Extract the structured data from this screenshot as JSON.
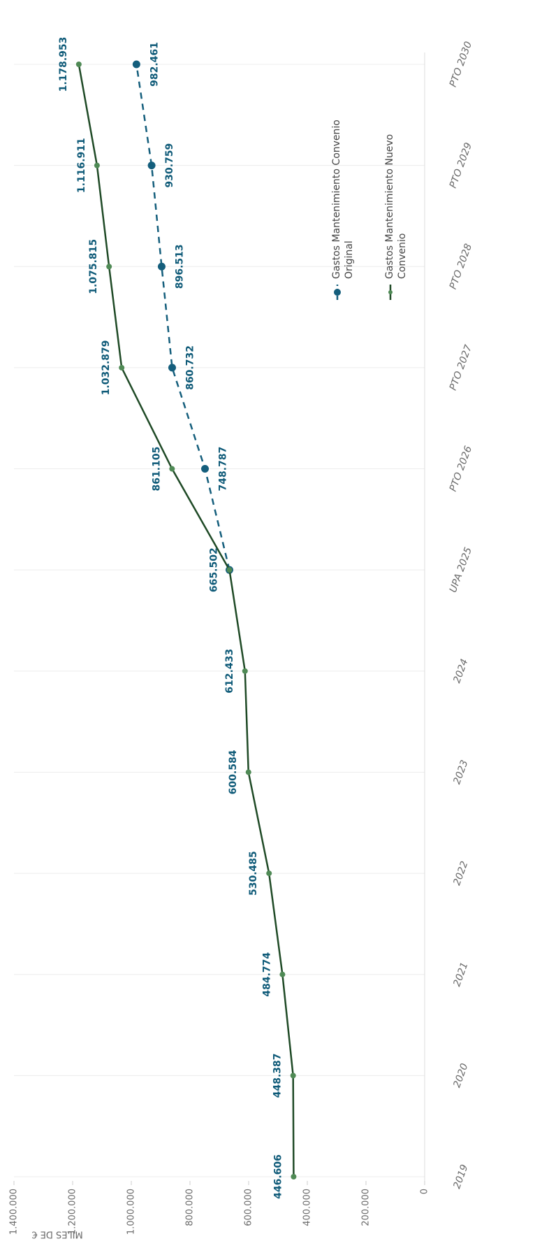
{
  "chart_data": {
    "type": "line",
    "y_label": "MILES DE €",
    "categories": [
      "2019",
      "2020",
      "2021",
      "2022",
      "2023",
      "2024",
      "UPA 2025",
      "PTO 2026",
      "PTO 2027",
      "PTO 2028",
      "PTO 2029",
      "PTO 2030"
    ],
    "series": [
      {
        "name": "Gastos Mantenimiento Convenio Original",
        "color": "#145e7c",
        "dashed": true,
        "values": [
          null,
          null,
          null,
          null,
          null,
          null,
          665502,
          748787,
          860732,
          896513,
          930759,
          982461
        ],
        "value_labels": [
          null,
          null,
          null,
          null,
          null,
          null,
          null,
          "748.787",
          "860.732",
          "896.513",
          "930.759",
          "982.461"
        ]
      },
      {
        "name": "Gastos Mantenimiento Nuevo Convenio",
        "color": "#1f4a26",
        "dashed": false,
        "values": [
          446606,
          448387,
          484774,
          530485,
          600584,
          612433,
          665502,
          861105,
          1032879,
          1075815,
          1116911,
          1178953
        ],
        "value_labels": [
          "446.606",
          "448.387",
          "484.774",
          "530.485",
          "600.584",
          "612.433",
          "665.502",
          "861.105",
          "1.032.879",
          "1.075.815",
          "1.116.911",
          "1.178.953"
        ]
      }
    ],
    "ylim": [
      0,
      1400000
    ],
    "yticks": [
      {
        "value": 0,
        "label": "0"
      },
      {
        "value": 200000,
        "label": "200.000"
      },
      {
        "value": 400000,
        "label": "400.000"
      },
      {
        "value": 600000,
        "label": "600.000"
      },
      {
        "value": 800000,
        "label": "800.000"
      },
      {
        "value": 1000000,
        "label": "1.000.000"
      },
      {
        "value": 1200000,
        "label": "1.200.000"
      },
      {
        "value": 1400000,
        "label": "1.400.000"
      }
    ],
    "grid": true
  }
}
